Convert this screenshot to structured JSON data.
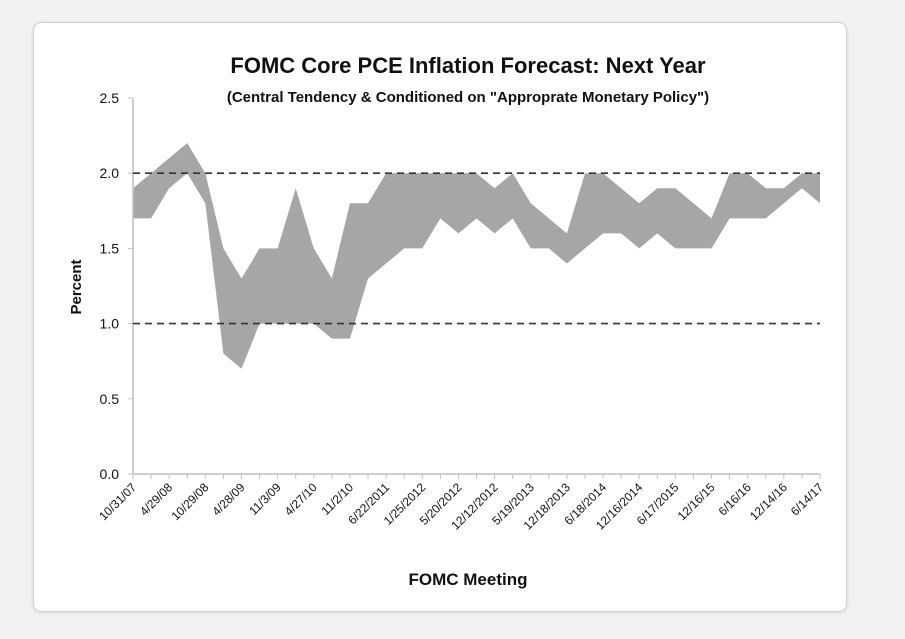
{
  "chart_data": {
    "type": "area",
    "title": "FOMC Core PCE Inflation Forecast: Next Year",
    "subtitle": "(Central Tendency & Conditioned on \"Approprate Monetary Policy\")",
    "xlabel": "FOMC Meeting",
    "ylabel": "Percent",
    "ylim": [
      0,
      2.5
    ],
    "yticks": [
      "0.0",
      "0.5",
      "1.0",
      "1.5",
      "2.0",
      "2.5"
    ],
    "xtick_labels": [
      "10/31/07",
      "4/29/08",
      "10/29/08",
      "4/28/09",
      "11/3/09",
      "4/27/10",
      "11/2/10",
      "6/22/2011",
      "1/25/2012",
      "5/20/2012",
      "12/12/2012",
      "5/19/2013",
      "12/18/2013",
      "6/18/2014",
      "12/16/2014",
      "6/17/2015",
      "12/16/15",
      "6/16/16",
      "12/14/16",
      "6/14/17"
    ],
    "xtick_every": 2,
    "reference_lines": [
      1.0,
      2.0
    ],
    "series": [
      {
        "name": "Central tendency upper",
        "values": [
          1.9,
          2.0,
          2.1,
          2.2,
          2.0,
          1.5,
          1.3,
          1.5,
          1.5,
          1.9,
          1.5,
          1.3,
          1.8,
          1.8,
          2.0,
          2.0,
          2.0,
          2.0,
          2.0,
          2.0,
          1.9,
          2.0,
          1.8,
          1.7,
          1.6,
          2.0,
          2.0,
          1.9,
          1.8,
          1.9,
          1.9,
          1.8,
          1.7,
          2.0,
          2.0,
          1.9,
          1.9,
          2.0,
          2.0
        ]
      },
      {
        "name": "Central tendency lower",
        "values": [
          1.7,
          1.7,
          1.9,
          2.0,
          1.8,
          0.8,
          0.7,
          1.0,
          1.0,
          1.0,
          1.0,
          0.9,
          0.9,
          1.3,
          1.4,
          1.5,
          1.5,
          1.7,
          1.6,
          1.7,
          1.6,
          1.7,
          1.5,
          1.5,
          1.4,
          1.5,
          1.6,
          1.6,
          1.5,
          1.6,
          1.5,
          1.5,
          1.5,
          1.7,
          1.7,
          1.7,
          1.8,
          1.9,
          1.8
        ]
      }
    ],
    "colors": {
      "band": "#a6a6a6",
      "axis": "#bfbfbf",
      "reference": "#333333"
    },
    "grid": false,
    "legend": "none"
  }
}
